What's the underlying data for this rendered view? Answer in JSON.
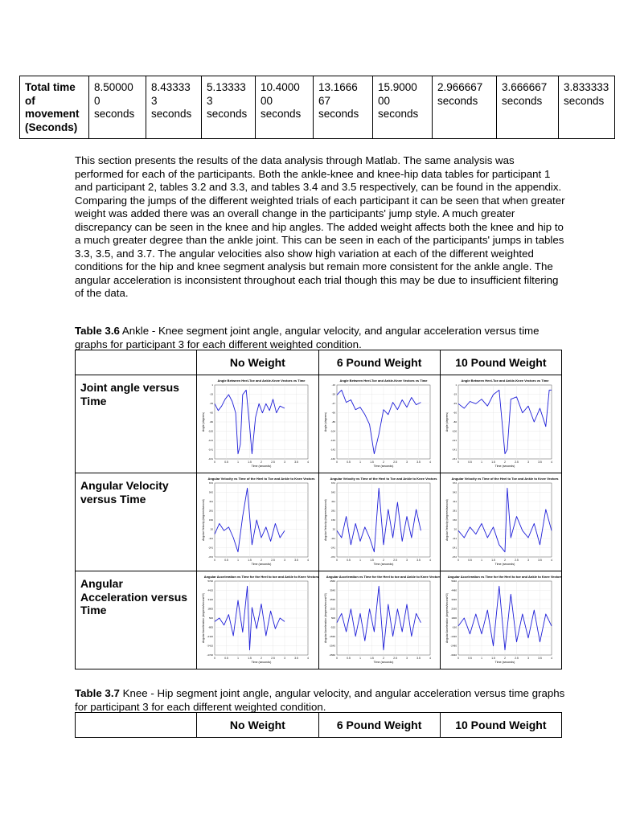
{
  "summary_table": {
    "header": "Total time of movement (Seconds)",
    "cells": [
      "8.500000 seconds",
      "8.433333 seconds",
      "5.133333 seconds",
      "10.400000 seconds",
      "13.166667 seconds",
      "15.900000 seconds",
      "2.966667 seconds",
      "3.666667 seconds",
      "3.833333 seconds"
    ],
    "cells_display": [
      [
        "8.50000",
        "0",
        "seconds"
      ],
      [
        "8.43333",
        "3",
        "seconds"
      ],
      [
        "5.13333",
        "3",
        "seconds"
      ],
      [
        "10.4000",
        "00",
        "seconds"
      ],
      [
        "13.1666",
        "67",
        "seconds"
      ],
      [
        "15.9000",
        "00",
        "seconds"
      ],
      [
        "2.966667",
        "seconds"
      ],
      [
        "3.666667",
        "seconds"
      ],
      [
        "3.833333",
        "seconds"
      ]
    ]
  },
  "paragraph": "This section presents the results of the data analysis through Matlab. The same analysis was performed for each of the participants. Both the ankle-knee and knee-hip data tables for participant 1 and participant 2, tables 3.2 and 3.3, and tables 3.4 and 3.5 respectively, can be found in the appendix. Comparing the jumps of the different weighted trials of each participant it can be seen that when greater weight was added there was an overall change in the participants' jump style. A much greater discrepancy can be seen in the knee and hip angles. The added weight affects both the knee and hip to a much greater degree than the ankle joint. This can be seen in each of the participants' jumps in tables 3.3, 3.5, and 3.7.  The angular velocities also show high variation at each of the different weighted conditions for the hip and knee segment analysis but remain more consistent for the ankle angle. The angular acceleration is inconsistent throughout each trial though this may be due to insufficient filtering of the data.",
  "table36": {
    "caption_label": "Table 3.6",
    "caption_text": " Ankle - Knee segment joint angle, angular velocity, and angular acceleration versus time graphs for participant 3 for each different weighted condition.",
    "columns": [
      "No Weight",
      "6 Pound Weight",
      "10 Pound Weight"
    ],
    "rows": [
      "Joint angle versus Time",
      "Angular Velocity versus Time",
      "Angular Acceleration versus Time"
    ]
  },
  "table37": {
    "caption_label": "Table 3.7",
    "caption_text": " Knee - Hip segment joint angle, angular velocity, and angular acceleration versus time graphs for participant 3 for each different weighted condition.",
    "columns": [
      "No Weight",
      "6 Pound Weight",
      "10 Pound Weight"
    ]
  },
  "chart_data": [
    {
      "type": "line",
      "title": "Angle Between Heel-Toe and Ankle-Knee Vectors vs Time",
      "xlabel": "Time (seconds)",
      "ylabel": "Angle (degrees)",
      "xlim": [
        0,
        4
      ],
      "x": [
        0,
        0.15,
        0.3,
        0.45,
        0.6,
        0.75,
        0.9,
        1.0,
        1.1,
        1.2,
        1.35,
        1.5,
        1.6,
        1.75,
        1.9,
        2.05,
        2.2,
        2.35,
        2.5,
        2.65,
        2.8,
        3.0
      ],
      "y": [
        -40,
        -55,
        -45,
        -30,
        -20,
        -35,
        -60,
        -150,
        -130,
        -20,
        -10,
        -90,
        -150,
        -70,
        -40,
        -60,
        -40,
        -55,
        -30,
        -60,
        -45,
        -50
      ]
    },
    {
      "type": "line",
      "title": "Angle Between Heel-Toe and Ankle-Knee Vectors vs Time",
      "xlabel": "Time (seconds)",
      "ylabel": "Angle (degrees)",
      "xlim": [
        0,
        4
      ],
      "x": [
        0,
        0.2,
        0.4,
        0.6,
        0.8,
        1.0,
        1.2,
        1.4,
        1.6,
        1.8,
        2.0,
        2.2,
        2.4,
        2.6,
        2.8,
        3.0,
        3.2,
        3.4,
        3.6
      ],
      "y": [
        -30,
        -20,
        -45,
        -40,
        -60,
        -55,
        -70,
        -90,
        -150,
        -110,
        -60,
        -70,
        -45,
        -60,
        -40,
        -55,
        -35,
        -50,
        -45
      ]
    },
    {
      "type": "line",
      "title": "Angle Between Heel-Toe and Ankle-Knee Vectors vs Time",
      "xlabel": "Time (seconds)",
      "ylabel": "Angle (degrees)",
      "xlim": [
        0,
        4
      ],
      "x": [
        0,
        0.25,
        0.5,
        0.75,
        1.0,
        1.25,
        1.5,
        1.75,
        2.0,
        2.1,
        2.25,
        2.5,
        2.75,
        3.0,
        3.25,
        3.5,
        3.75,
        3.9,
        4.0
      ],
      "y": [
        -40,
        -50,
        -35,
        -40,
        -30,
        -45,
        -20,
        -10,
        -150,
        -140,
        -30,
        -25,
        -60,
        -45,
        -80,
        -50,
        -90,
        -10,
        -10
      ]
    },
    {
      "type": "line",
      "title": "Angular Velocity vs Time of the Heel to Toe and Ankle to Knee Vectors",
      "xlabel": "Time (seconds)",
      "ylabel": "Angular Velocity (degrees/second)",
      "xlim": [
        0,
        4
      ],
      "x": [
        0,
        0.2,
        0.4,
        0.6,
        0.8,
        1.0,
        1.2,
        1.4,
        1.6,
        1.8,
        2.0,
        2.2,
        2.4,
        2.6,
        2.8,
        3.0
      ],
      "y": [
        -50,
        100,
        0,
        50,
        -100,
        -300,
        200,
        600,
        -200,
        150,
        -100,
        50,
        -150,
        100,
        -100,
        0
      ]
    },
    {
      "type": "line",
      "title": "Angular Velocity vs Time of the Heel to Toe and Ankle to Knee Vectors",
      "xlabel": "Time (seconds)",
      "ylabel": "Angular Velocity (degrees/second)",
      "xlim": [
        0,
        4
      ],
      "x": [
        0,
        0.2,
        0.4,
        0.6,
        0.8,
        1.0,
        1.2,
        1.4,
        1.6,
        1.8,
        2.0,
        2.2,
        2.4,
        2.6,
        2.8,
        3.0,
        3.2,
        3.4,
        3.6
      ],
      "y": [
        0,
        -100,
        200,
        -200,
        100,
        -150,
        50,
        -100,
        -300,
        600,
        -200,
        300,
        -100,
        400,
        -150,
        200,
        -100,
        300,
        0
      ]
    },
    {
      "type": "line",
      "title": "Angular Velocity vs Time of the Heel to Toe and Ankle to Knee Vectors",
      "xlabel": "Time (seconds)",
      "ylabel": "Angular Velocity (degrees/second)",
      "xlim": [
        0,
        4
      ],
      "x": [
        0,
        0.25,
        0.5,
        0.75,
        1.0,
        1.25,
        1.5,
        1.75,
        2.0,
        2.1,
        2.25,
        2.5,
        2.75,
        3.0,
        3.25,
        3.5,
        3.75,
        4.0
      ],
      "y": [
        0,
        -100,
        50,
        -50,
        100,
        -100,
        50,
        -200,
        -300,
        600,
        -100,
        200,
        0,
        -100,
        100,
        -200,
        300,
        0
      ]
    },
    {
      "type": "line",
      "title": "Angular Acceleration vs Time for the Heel to toe and Ankle to Knee Vectors",
      "xlabel": "Time (seconds)",
      "ylabel": "Angular Acceleration (degrees/second^2)",
      "xlim": [
        0,
        4
      ],
      "x": [
        0,
        0.2,
        0.4,
        0.6,
        0.8,
        1.0,
        1.2,
        1.4,
        1.5,
        1.6,
        1.8,
        2.0,
        2.2,
        2.4,
        2.6,
        2.8,
        3.0
      ],
      "y": [
        0,
        500,
        -500,
        1000,
        -2000,
        3000,
        -1500,
        5000,
        -4000,
        2000,
        -1000,
        2500,
        -2000,
        1500,
        -1000,
        500,
        0
      ]
    },
    {
      "type": "line",
      "title": "Angular Acceleration vs Time for the Heel to toe and Ankle to Knee Vectors",
      "xlabel": "Time (seconds)",
      "ylabel": "Angular Acceleration (degrees/second^2)",
      "xlim": [
        0,
        4
      ],
      "x": [
        0,
        0.2,
        0.4,
        0.6,
        0.8,
        1.0,
        1.2,
        1.4,
        1.6,
        1.8,
        2.0,
        2.2,
        2.4,
        2.6,
        2.8,
        3.0,
        3.2,
        3.4,
        3.6
      ],
      "y": [
        0,
        1000,
        -1000,
        1500,
        -1500,
        1000,
        -2000,
        1500,
        -1000,
        4000,
        -3000,
        2000,
        -1500,
        1500,
        -1000,
        2000,
        -1500,
        1000,
        0
      ]
    },
    {
      "type": "line",
      "title": "Angular Acceleration vs Time for the Heel to toe and Ankle to Knee Vectors",
      "xlabel": "Time (seconds)",
      "ylabel": "Angular Acceleration (degrees/second^2)",
      "xlim": [
        0,
        4
      ],
      "x": [
        0,
        0.25,
        0.5,
        0.75,
        1.0,
        1.25,
        1.5,
        1.75,
        2.0,
        2.25,
        2.5,
        2.75,
        3.0,
        3.25,
        3.5,
        3.75,
        4.0
      ],
      "y": [
        0,
        1000,
        -1000,
        1500,
        -1000,
        2000,
        -2500,
        5000,
        -3000,
        4000,
        -2000,
        1500,
        -1500,
        2000,
        -2000,
        1500,
        0
      ]
    }
  ]
}
